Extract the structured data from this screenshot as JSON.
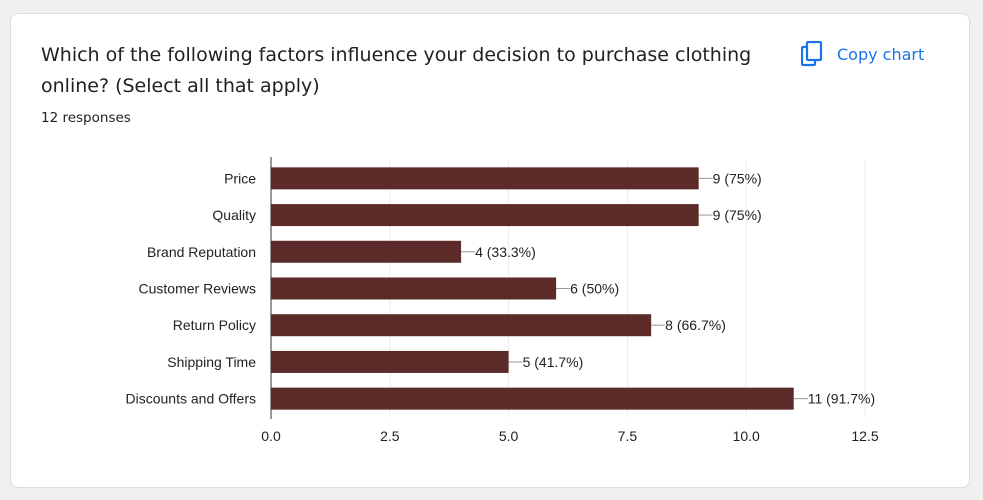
{
  "question": {
    "title": "Which of the following factors influence your decision to purchase clothing online? (Select all that apply)",
    "responses": "12 responses"
  },
  "toolbar": {
    "copy_label": "Copy chart",
    "copy_icon": "copy-icon"
  },
  "colors": {
    "bar": "#5c2b29",
    "accent": "#1a73e8",
    "grid": "#ebebeb",
    "axis": "#333333"
  },
  "chart_data": {
    "type": "bar",
    "orientation": "horizontal",
    "categories": [
      "Price",
      "Quality",
      "Brand Reputation",
      "Customer Reviews",
      "Return Policy",
      "Shipping Time",
      "Discounts and Offers"
    ],
    "values": [
      9,
      9,
      4,
      6,
      8,
      5,
      11
    ],
    "data_labels": [
      "9 (75%)",
      "9 (75%)",
      "4 (33.3%)",
      "6 (50%)",
      "8 (66.7%)",
      "5 (41.7%)",
      "11 (91.7%)"
    ],
    "x_ticks": [
      "0.0",
      "2.5",
      "5.0",
      "7.5",
      "10.0",
      "12.5"
    ],
    "xlim": [
      0,
      12.5
    ],
    "grid": true,
    "legend": "none"
  }
}
